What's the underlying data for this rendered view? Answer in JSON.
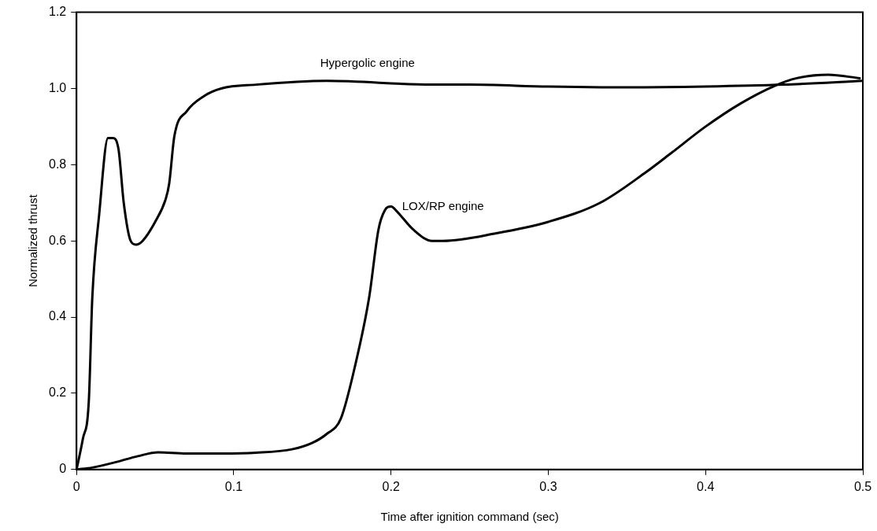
{
  "chart_data": {
    "type": "line",
    "xlabel": "Time after ignition command (sec)",
    "ylabel": "Normalized thrust",
    "xlim": [
      0,
      0.5
    ],
    "xticks": [
      0,
      0.1,
      0.2,
      0.3,
      0.4,
      0.5
    ],
    "ylim": [
      0,
      1.2
    ],
    "yticks": [
      0,
      0.2,
      0.4,
      0.6,
      0.8,
      {
        "value": 1,
        "label": "1.0"
      },
      1.2
    ],
    "grid": false,
    "legend": false,
    "marker": "none",
    "line_style": "solid",
    "series": [
      {
        "name": "Hypergolic engine",
        "color": "#000000",
        "x": [
          0,
          0.004,
          0.0078,
          0.01,
          0.0144,
          0.02,
          0.023,
          0.0267,
          0.03,
          0.0344,
          0.0378,
          0.042,
          0.05,
          0.0567,
          0.0589,
          0.0622,
          0.07,
          0.081,
          0.092,
          0.114,
          0.159,
          0.226,
          0.25,
          0.3,
          0.35,
          0.4,
          0.45,
          0.5
        ],
        "values": [
          0,
          0.08,
          0.18,
          0.45,
          0.67,
          0.87,
          0.87,
          0.84,
          0.7,
          0.6,
          0.59,
          0.6,
          0.65,
          0.71,
          0.75,
          0.875,
          0.94,
          0.98,
          1.0,
          1.01,
          1.02,
          1.01,
          1.01,
          1.005,
          1.003,
          1.005,
          1.01,
          1.02
        ]
      },
      {
        "name": "LOX/RP engine",
        "color": "#000000",
        "x": [
          0,
          0.01,
          0.0256,
          0.039,
          0.052,
          0.07,
          0.092,
          0.114,
          0.137,
          0.15,
          0.159,
          0.168,
          0.177,
          0.186,
          0.192,
          0.196,
          0.2,
          0.204,
          0.214,
          0.226,
          0.233,
          0.267,
          0.3,
          0.333,
          0.362,
          0.378,
          0.4,
          0.422,
          0.444,
          0.458,
          0.478,
          0.498
        ],
        "values": [
          0,
          0.005,
          0.02,
          0.035,
          0.045,
          0.042,
          0.042,
          0.044,
          0.053,
          0.07,
          0.093,
          0.133,
          0.27,
          0.45,
          0.63,
          0.68,
          0.69,
          0.676,
          0.63,
          0.6,
          0.6,
          0.62,
          0.65,
          0.7,
          0.78,
          0.83,
          0.9,
          0.96,
          1.007,
          1.027,
          1.036,
          1.027
        ]
      }
    ]
  }
}
